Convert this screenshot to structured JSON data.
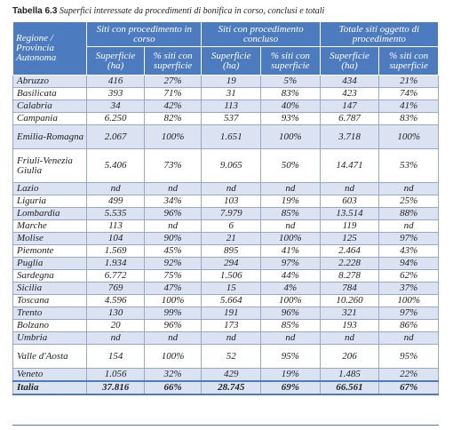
{
  "caption": {
    "number": "Tabella 6.3",
    "text": "Superfici interessate da procedimenti di bonifica in corso, conclusi e totali"
  },
  "header": {
    "region": "Regione / Provincia Autonoma",
    "groups": [
      "Siti con procedimento in corso",
      "Siti con procedimento concluso",
      "Totale siti oggetto di procedimento"
    ],
    "sub_surface": "Superficie (ha)",
    "sub_percent": "% siti con superficie"
  },
  "rows": [
    {
      "region": "Abruzzo",
      "c1": "416",
      "p1": "27%",
      "c2": "19",
      "p2": "5%",
      "c3": "434",
      "p3": "21%"
    },
    {
      "region": "Basilicata",
      "c1": "393",
      "p1": "71%",
      "c2": "31",
      "p2": "83%",
      "c3": "423",
      "p3": "74%"
    },
    {
      "region": "Calabria",
      "c1": "34",
      "p1": "42%",
      "c2": "113",
      "p2": "40%",
      "c3": "147",
      "p3": "41%"
    },
    {
      "region": "Campania",
      "c1": "6.250",
      "p1": "82%",
      "c2": "537",
      "p2": "93%",
      "c3": "6.787",
      "p3": "83%"
    },
    {
      "region": "Emilia-Romagna",
      "c1": "2.067",
      "p1": "100%",
      "c2": "1.651",
      "p2": "100%",
      "c3": "3.718",
      "p3": "100%"
    },
    {
      "region": "Friuli-Venezia Giulia",
      "c1": "5.406",
      "p1": "73%",
      "c2": "9.065",
      "p2": "50%",
      "c3": "14.471",
      "p3": "53%"
    },
    {
      "region": "Lazio",
      "c1": "nd",
      "p1": "nd",
      "c2": "nd",
      "p2": "nd",
      "c3": "nd",
      "p3": "nd"
    },
    {
      "region": "Liguria",
      "c1": "499",
      "p1": "34%",
      "c2": "103",
      "p2": "19%",
      "c3": "603",
      "p3": "25%"
    },
    {
      "region": "Lombardia",
      "c1": "5.535",
      "p1": "96%",
      "c2": "7.979",
      "p2": "85%",
      "c3": "13.514",
      "p3": "88%"
    },
    {
      "region": "Marche",
      "c1": "113",
      "p1": "nd",
      "c2": "6",
      "p2": "nd",
      "c3": "119",
      "p3": "nd"
    },
    {
      "region": "Molise",
      "c1": "104",
      "p1": "90%",
      "c2": "21",
      "p2": "100%",
      "c3": "125",
      "p3": "97%"
    },
    {
      "region": "Piemonte",
      "c1": "1.569",
      "p1": "45%",
      "c2": "895",
      "p2": "41%",
      "c3": "2.464",
      "p3": "43%"
    },
    {
      "region": "Puglia",
      "c1": "1.934",
      "p1": "92%",
      "c2": "294",
      "p2": "97%",
      "c3": "2.228",
      "p3": "94%"
    },
    {
      "region": "Sardegna",
      "c1": "6.772",
      "p1": "75%",
      "c2": "1.506",
      "p2": "44%",
      "c3": "8.278",
      "p3": "62%"
    },
    {
      "region": "Sicilia",
      "c1": "769",
      "p1": "47%",
      "c2": "15",
      "p2": "4%",
      "c3": "784",
      "p3": "37%"
    },
    {
      "region": "Toscana",
      "c1": "4.596",
      "p1": "100%",
      "c2": "5.664",
      "p2": "100%",
      "c3": "10.260",
      "p3": "100%"
    },
    {
      "region": "Trento",
      "c1": "130",
      "p1": "99%",
      "c2": "191",
      "p2": "96%",
      "c3": "321",
      "p3": "97%"
    },
    {
      "region": "Bolzano",
      "c1": "20",
      "p1": "96%",
      "c2": "173",
      "p2": "85%",
      "c3": "193",
      "p3": "86%"
    },
    {
      "region": "Umbria",
      "c1": "nd",
      "p1": "nd",
      "c2": "nd",
      "p2": "nd",
      "c3": "nd",
      "p3": "nd"
    },
    {
      "region": "Valle d'Aosta",
      "c1": "154",
      "p1": "100%",
      "c2": "52",
      "p2": "95%",
      "c3": "206",
      "p3": "95%"
    },
    {
      "region": "Veneto",
      "c1": "1.056",
      "p1": "32%",
      "c2": "429",
      "p2": "19%",
      "c3": "1.485",
      "p3": "22%"
    }
  ],
  "total": {
    "region": "Italia",
    "c1": "37.816",
    "p1": "66%",
    "c2": "28.745",
    "p2": "69%",
    "c3": "66.561",
    "p3": "67%"
  },
  "colors": {
    "header_bg": "#4d7bbf",
    "band_bg": "#dbe3f2"
  }
}
